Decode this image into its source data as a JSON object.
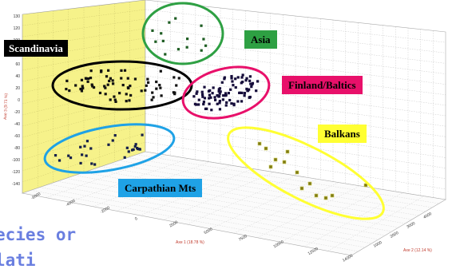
{
  "chart_data": {
    "type": "scatter",
    "dimensions": 3,
    "axis_labels": {
      "x": "Axe 1 (18.78 %)",
      "y": "Axe 2 (12.14 %)",
      "z": "Axe 3 (9.71 %)"
    },
    "x_ticks": [
      "-6000",
      "-4000",
      "-2000",
      "0",
      "2500",
      "5000",
      "7500",
      "10000",
      "12500",
      "14000"
    ],
    "z_ticks": [
      "130",
      "120",
      "100",
      "80",
      "60",
      "40",
      "20",
      "0",
      "-20",
      "-40",
      "-60",
      "-80",
      "-100",
      "-120",
      "-140"
    ],
    "y_ticks": [
      "1000",
      "2000",
      "3000",
      "4000"
    ],
    "groups": [
      {
        "name": "Scandinavia",
        "color": "#000000",
        "marker_color": "#111111"
      },
      {
        "name": "Asia",
        "color": "#2ea043",
        "marker_color": "#1e5d23"
      },
      {
        "name": "Finland/Baltics",
        "color": "#e8106a",
        "marker_color": "#150c3a"
      },
      {
        "name": "Balkans",
        "color": "#ffff33",
        "marker_color": "#7d7a14"
      },
      {
        "name": "Carpathian Mts",
        "color": "#1fa2e6",
        "marker_color": "#141e4a"
      }
    ]
  },
  "labels": {
    "scandinavia": "Scandinavia",
    "asia": "Asia",
    "finland_baltics": "Finland/Baltics",
    "balkans": "Balkans",
    "carpathian": "Carpathian Mts"
  },
  "caption": {
    "line1": "ecies or",
    "line2": "lati"
  }
}
